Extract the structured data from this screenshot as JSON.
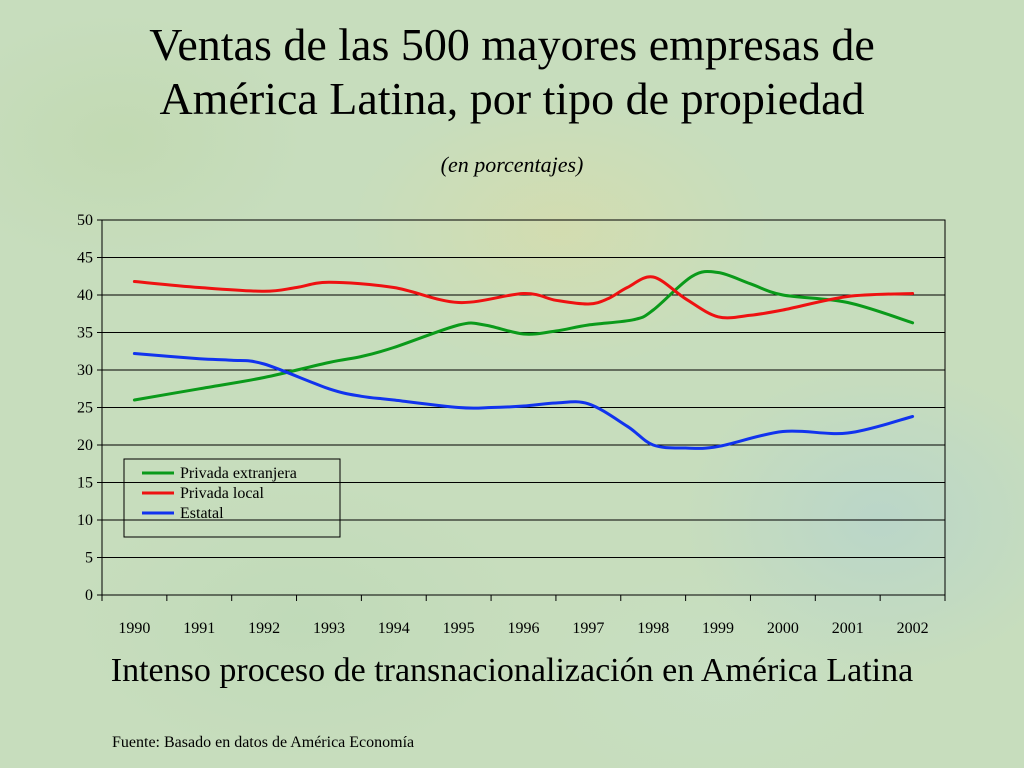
{
  "slide": {
    "title_line1": "Ventas de las 500 mayores empresas de",
    "title_line2": "América Latina, por tipo de propiedad",
    "subtitle": "(en porcentajes)",
    "caption": "Intenso proceso de transnacionalización en América Latina",
    "source": "Fuente: Basado en datos de América Economía"
  },
  "chart_data": {
    "type": "line",
    "title": "Ventas de las 500 mayores empresas de América Latina, por tipo de propiedad",
    "subtitle": "(en porcentajes)",
    "xlabel": "",
    "ylabel": "",
    "categories": [
      "1990",
      "1991",
      "1992",
      "1993",
      "1994",
      "1995",
      "1996",
      "1997",
      "1998",
      "1999",
      "2000",
      "2001",
      "2002"
    ],
    "ylim": [
      0,
      50
    ],
    "yticks": [
      0,
      5,
      10,
      15,
      20,
      25,
      30,
      35,
      40,
      45,
      50
    ],
    "grid": true,
    "legend_position": "lower-left",
    "series": [
      {
        "name": "Privada extranjera",
        "color": "#0a9a1a",
        "x": [
          1990,
          1991,
          1992,
          1993,
          1993.5,
          1994,
          1995,
          1995.4,
          1996,
          1996.5,
          1997,
          1997.7,
          1998,
          1998.6,
          1999,
          1999.5,
          2000,
          2001,
          2002
        ],
        "values": [
          26,
          27.5,
          29,
          31,
          31.8,
          33,
          36,
          36,
          34.8,
          35.2,
          36,
          36.7,
          38,
          42.5,
          43,
          41.5,
          40,
          39,
          36.3
        ]
      },
      {
        "name": "Privada local",
        "color": "#ee1111",
        "x": [
          1990,
          1991,
          1992,
          1992.5,
          1993,
          1994,
          1995,
          1996,
          1996.5,
          1997,
          1997.3,
          1997.6,
          1998,
          1998.5,
          1999,
          1999.5,
          2000,
          2001,
          2002
        ],
        "values": [
          41.8,
          41,
          40.5,
          41,
          41.7,
          41,
          39,
          40.2,
          39.3,
          38.8,
          39.5,
          41,
          42.4,
          39.5,
          37.1,
          37.3,
          38,
          39.8,
          40.2
        ]
      },
      {
        "name": "Estatal",
        "color": "#1133ee",
        "x": [
          1990,
          1991,
          1991.5,
          1992,
          1993,
          1993.5,
          1994,
          1995,
          1995.5,
          1996,
          1996.5,
          1997,
          1997.6,
          1998,
          1998.5,
          1999,
          2000,
          2001,
          2002
        ],
        "values": [
          32.2,
          31.5,
          31.3,
          30.8,
          27.5,
          26.5,
          26,
          25,
          25,
          25.2,
          25.6,
          25.5,
          22.5,
          20,
          19.6,
          19.8,
          21.8,
          21.6,
          23.8
        ]
      }
    ]
  }
}
